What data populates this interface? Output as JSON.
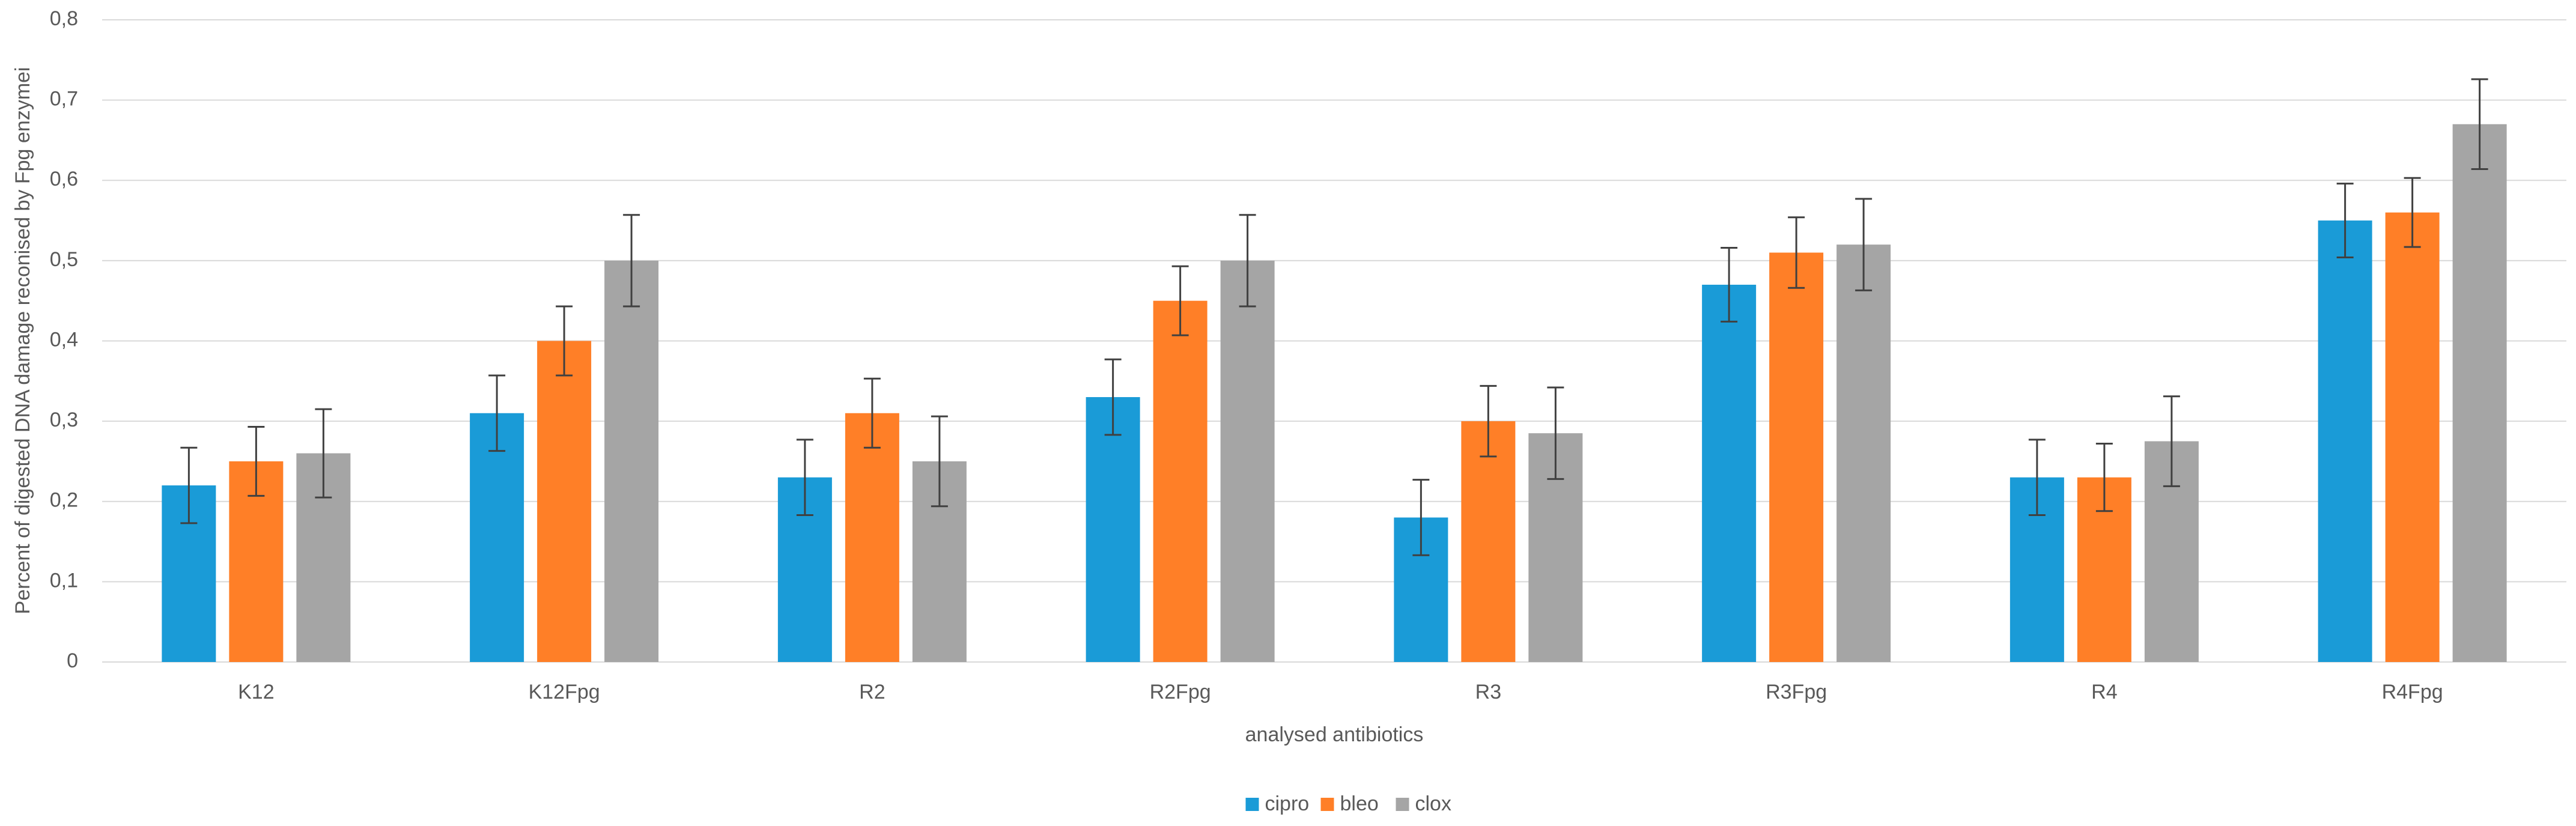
{
  "chart_data": {
    "type": "bar",
    "y_label": "Percent of digested DNA damage reconised by Fpg enzymei",
    "x_label": "analysed antibiotics",
    "categories": [
      "K12",
      "K12Fpg",
      "R2",
      "R2Fpg",
      "R3",
      "R3Fpg",
      "R4",
      "R4Fpg"
    ],
    "series": [
      {
        "name": "cipro",
        "color": "#1a9bd7",
        "values": [
          0.22,
          0.31,
          0.23,
          0.33,
          0.18,
          0.47,
          0.23,
          0.55
        ],
        "errors": [
          0.047,
          0.047,
          0.047,
          0.047,
          0.047,
          0.046,
          0.047,
          0.046
        ]
      },
      {
        "name": "bleo",
        "color": "#ff7f27",
        "values": [
          0.25,
          0.4,
          0.31,
          0.45,
          0.3,
          0.51,
          0.23,
          0.56
        ],
        "errors": [
          0.043,
          0.043,
          0.043,
          0.043,
          0.044,
          0.044,
          0.042,
          0.043
        ]
      },
      {
        "name": "clox",
        "color": "#a5a5a5",
        "values": [
          0.26,
          0.5,
          0.25,
          0.5,
          0.285,
          0.52,
          0.275,
          0.67
        ],
        "errors": [
          0.055,
          0.057,
          0.056,
          0.057,
          0.057,
          0.057,
          0.056,
          0.056
        ]
      }
    ],
    "ylim": [
      0,
      0.8
    ],
    "yticks": [
      0,
      {
        "value": 0.1,
        "label": "0,1"
      },
      {
        "value": 0.2,
        "label": "0,2"
      },
      {
        "value": 0.3,
        "label": "0,3"
      },
      {
        "value": 0.4,
        "label": "0,4"
      },
      {
        "value": 0.5,
        "label": "0,5"
      },
      {
        "value": 0.6,
        "label": "0,6"
      },
      {
        "value": 0.7,
        "label": "0,7"
      },
      {
        "value": 0.8,
        "label": "0,8"
      }
    ],
    "grid": true,
    "legend": "bottom"
  }
}
